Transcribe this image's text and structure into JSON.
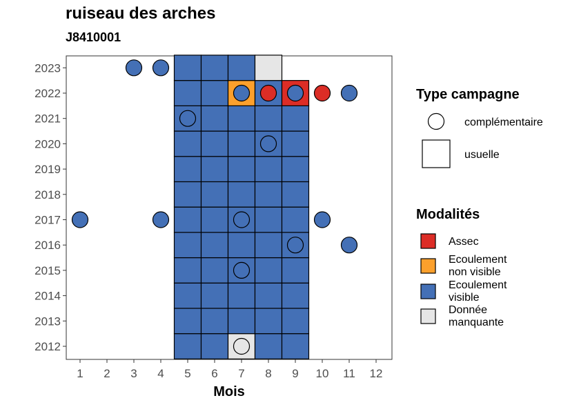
{
  "title": "ruiseau des arches",
  "subtitle": "J8410001",
  "chart_data": {
    "type": "heatmap",
    "xlabel": "Mois",
    "ylabel": "",
    "x_ticks": [
      "1",
      "2",
      "3",
      "4",
      "5",
      "6",
      "7",
      "8",
      "9",
      "10",
      "11",
      "12"
    ],
    "y_ticks": [
      "2012",
      "2013",
      "2014",
      "2015",
      "2016",
      "2017",
      "2018",
      "2019",
      "2020",
      "2021",
      "2022",
      "2023"
    ],
    "xlim": [
      1,
      12
    ],
    "ylim": [
      2012,
      2023
    ],
    "colors": {
      "Assec": "#dc2d26",
      "Ecoulement non visible": "#fca02c",
      "Ecoulement visible": "#4470b6",
      "Donnée manquante": "#e6e6e6"
    },
    "usuelle": [
      {
        "year": 2012,
        "values": {
          "5": "Ecoulement visible",
          "6": "Ecoulement visible",
          "7": "Donnée manquante",
          "8": "Ecoulement visible",
          "9": "Ecoulement visible"
        }
      },
      {
        "year": 2013,
        "values": {
          "5": "Ecoulement visible",
          "6": "Ecoulement visible",
          "7": "Ecoulement visible",
          "8": "Ecoulement visible",
          "9": "Ecoulement visible"
        }
      },
      {
        "year": 2014,
        "values": {
          "5": "Ecoulement visible",
          "6": "Ecoulement visible",
          "7": "Ecoulement visible",
          "8": "Ecoulement visible",
          "9": "Ecoulement visible"
        }
      },
      {
        "year": 2015,
        "values": {
          "5": "Ecoulement visible",
          "6": "Ecoulement visible",
          "7": "Ecoulement visible",
          "8": "Ecoulement visible",
          "9": "Ecoulement visible"
        }
      },
      {
        "year": 2016,
        "values": {
          "5": "Ecoulement visible",
          "6": "Ecoulement visible",
          "7": "Ecoulement visible",
          "8": "Ecoulement visible",
          "9": "Ecoulement visible"
        }
      },
      {
        "year": 2017,
        "values": {
          "5": "Ecoulement visible",
          "6": "Ecoulement visible",
          "7": "Ecoulement visible",
          "8": "Ecoulement visible",
          "9": "Ecoulement visible"
        }
      },
      {
        "year": 2018,
        "values": {
          "5": "Ecoulement visible",
          "6": "Ecoulement visible",
          "7": "Ecoulement visible",
          "8": "Ecoulement visible",
          "9": "Ecoulement visible"
        }
      },
      {
        "year": 2019,
        "values": {
          "5": "Ecoulement visible",
          "6": "Ecoulement visible",
          "7": "Ecoulement visible",
          "8": "Ecoulement visible",
          "9": "Ecoulement visible"
        }
      },
      {
        "year": 2020,
        "values": {
          "5": "Ecoulement visible",
          "6": "Ecoulement visible",
          "7": "Ecoulement visible",
          "8": "Ecoulement visible",
          "9": "Ecoulement visible"
        }
      },
      {
        "year": 2021,
        "values": {
          "5": "Ecoulement visible",
          "6": "Ecoulement visible",
          "7": "Ecoulement visible",
          "8": "Ecoulement visible",
          "9": "Ecoulement visible"
        }
      },
      {
        "year": 2022,
        "values": {
          "5": "Ecoulement visible",
          "6": "Ecoulement visible",
          "7": "Ecoulement non visible",
          "8": "Ecoulement visible",
          "9": "Assec"
        }
      },
      {
        "year": 2023,
        "values": {
          "5": "Ecoulement visible",
          "6": "Ecoulement visible",
          "7": "Ecoulement visible",
          "8": "Donnée manquante"
        }
      }
    ],
    "complementaire": [
      {
        "year": 2023,
        "month": 3,
        "value": "Ecoulement visible"
      },
      {
        "year": 2023,
        "month": 4,
        "value": "Ecoulement visible"
      },
      {
        "year": 2022,
        "month": 7,
        "value": "Ecoulement visible"
      },
      {
        "year": 2022,
        "month": 8,
        "value": "Assec"
      },
      {
        "year": 2022,
        "month": 9,
        "value": "Ecoulement visible"
      },
      {
        "year": 2022,
        "month": 10,
        "value": "Assec"
      },
      {
        "year": 2022,
        "month": 11,
        "value": "Ecoulement visible"
      },
      {
        "year": 2021,
        "month": 5,
        "value": "Ecoulement visible"
      },
      {
        "year": 2020,
        "month": 8,
        "value": "Ecoulement visible"
      },
      {
        "year": 2017,
        "month": 1,
        "value": "Ecoulement visible"
      },
      {
        "year": 2017,
        "month": 4,
        "value": "Ecoulement visible"
      },
      {
        "year": 2017,
        "month": 7,
        "value": "Ecoulement visible"
      },
      {
        "year": 2017,
        "month": 10,
        "value": "Ecoulement visible"
      },
      {
        "year": 2016,
        "month": 9,
        "value": "Ecoulement visible"
      },
      {
        "year": 2016,
        "month": 11,
        "value": "Ecoulement visible"
      },
      {
        "year": 2015,
        "month": 7,
        "value": "Ecoulement visible"
      },
      {
        "year": 2012,
        "month": 7,
        "value": "Donnée manquante"
      }
    ],
    "legend_type": {
      "title": "Type campagne",
      "items": [
        {
          "label": "complémentaire",
          "shape": "circle"
        },
        {
          "label": "usuelle",
          "shape": "square"
        }
      ]
    },
    "legend_modalites": {
      "title": "Modalités",
      "items": [
        {
          "lines": [
            "Assec"
          ],
          "key": "Assec"
        },
        {
          "lines": [
            "Ecoulement",
            "non visible"
          ],
          "key": "Ecoulement non visible"
        },
        {
          "lines": [
            "Ecoulement",
            "visible"
          ],
          "key": "Ecoulement visible"
        },
        {
          "lines": [
            "Donnée",
            "manquante"
          ],
          "key": "Donnée manquante"
        }
      ]
    },
    "legend_position": "right",
    "grid": false
  }
}
